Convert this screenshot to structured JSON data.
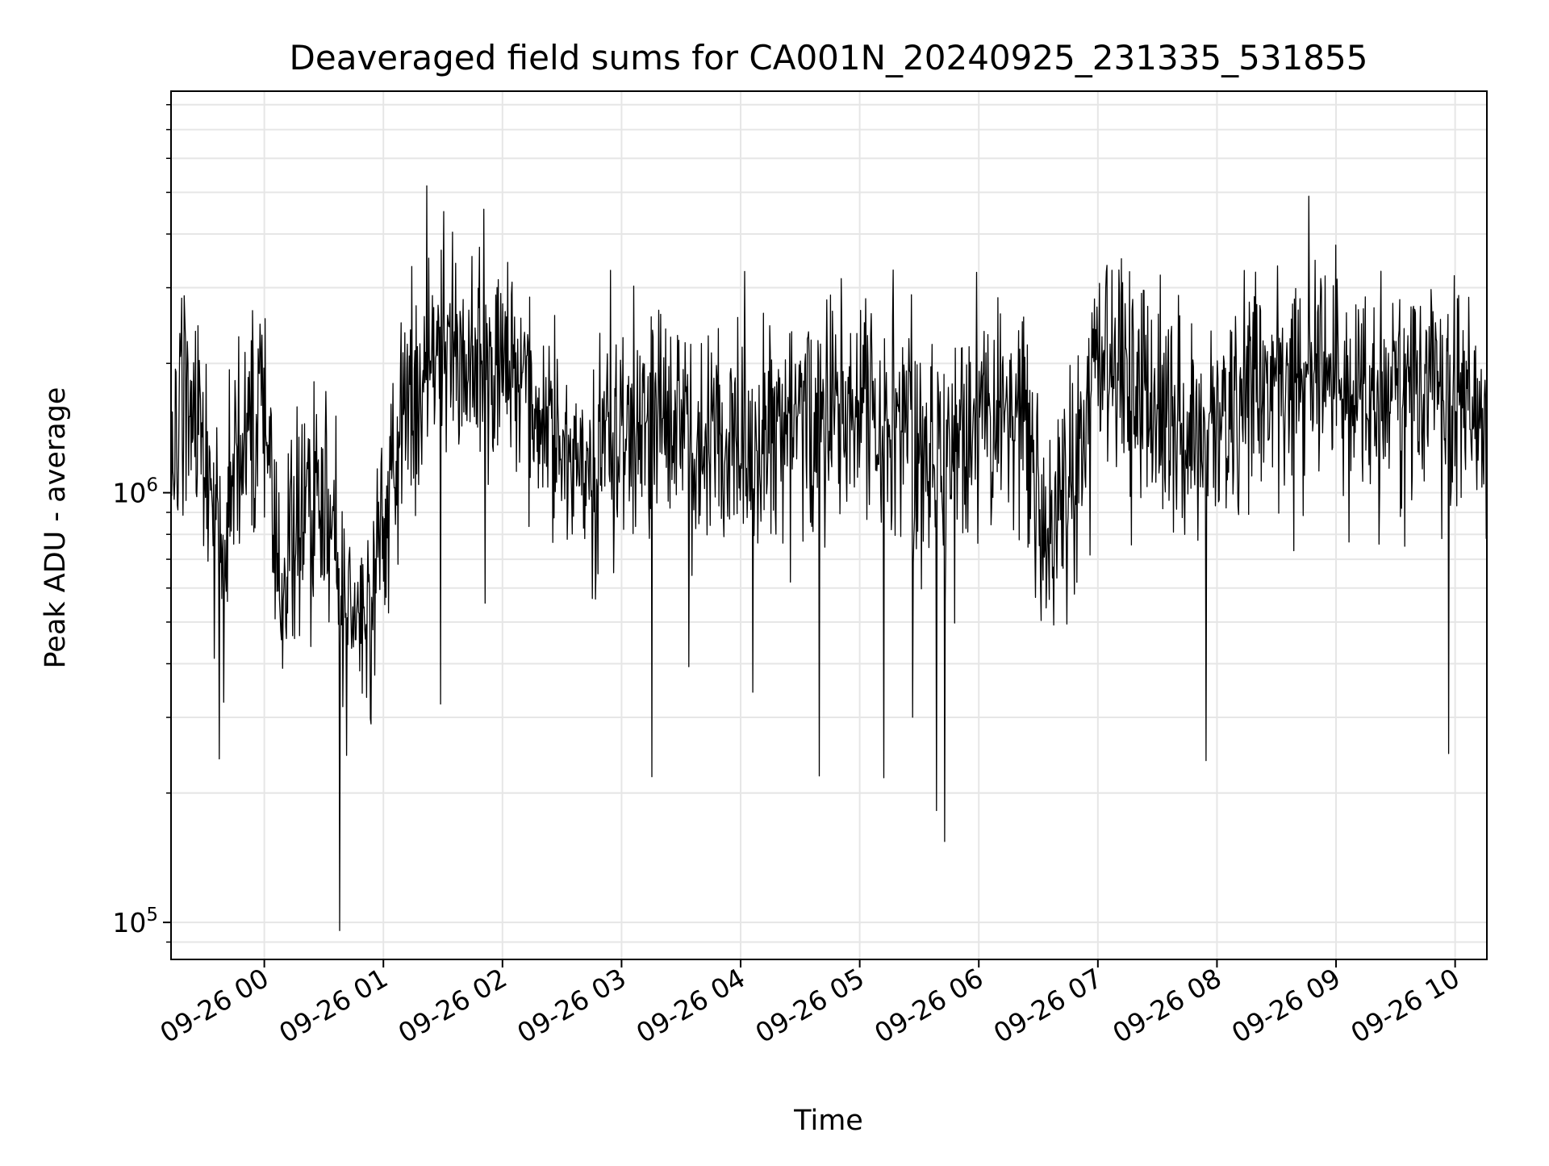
{
  "chart_data": {
    "type": "line",
    "title": "Deaveraged field sums for CA001N_20240925_231335_531855",
    "xlabel": "Time",
    "ylabel": "Peak ADU - average",
    "yscale": "log",
    "ylim": [
      82000,
      8600000
    ],
    "xlim": [
      "2024-09-25 23:13",
      "2024-09-26 10:16"
    ],
    "grid": true,
    "legend": "none",
    "colors": {
      "line": "#000000",
      "grid": "#e6e6e6",
      "axes": "#000000"
    },
    "x_ticks": [
      "09-26 00",
      "09-26 01",
      "09-26 02",
      "09-26 03",
      "09-26 04",
      "09-26 05",
      "09-26 06",
      "09-26 07",
      "09-26 08",
      "09-26 09",
      "09-26 10"
    ],
    "x_tick_values": [
      "2024-09-26 00:00",
      "2024-09-26 01:00",
      "2024-09-26 02:00",
      "2024-09-26 03:00",
      "2024-09-26 04:00",
      "2024-09-26 05:00",
      "2024-09-26 06:00",
      "2024-09-26 07:00",
      "2024-09-26 08:00",
      "2024-09-26 09:00",
      "2024-09-26 10:00"
    ],
    "y_ticks": [
      {
        "value": 100000,
        "base": "10",
        "exp": "5"
      },
      {
        "value": 1000000,
        "base": "10",
        "exp": "6"
      }
    ],
    "series": [
      {
        "color": "#000000",
        "points": [
          [
            "2024-09-25 23:13",
            1250000
          ],
          [
            "2024-09-25 23:20",
            1900000
          ],
          [
            "2024-09-25 23:30",
            1100000
          ],
          [
            "2024-09-25 23:40",
            760000
          ],
          [
            "2024-09-25 23:50",
            1300000
          ],
          [
            "2024-09-26 00:00",
            1500000
          ],
          [
            "2024-09-26 00:10",
            600000
          ],
          [
            "2024-09-26 00:20",
            900000
          ],
          [
            "2024-09-26 00:30",
            1000000
          ],
          [
            "2024-09-26 00:40",
            550000
          ],
          [
            "2024-09-26 00:50",
            480000
          ],
          [
            "2024-09-26 01:00",
            900000
          ],
          [
            "2024-09-26 01:10",
            1400000
          ],
          [
            "2024-09-26 01:20",
            1800000
          ],
          [
            "2024-09-26 01:30",
            2200000
          ],
          [
            "2024-09-26 01:40",
            1900000
          ],
          [
            "2024-09-26 02:00",
            2000000
          ],
          [
            "2024-09-26 02:20",
            1700000
          ],
          [
            "2024-09-26 02:40",
            1100000
          ],
          [
            "2024-09-26 03:00",
            1300000
          ],
          [
            "2024-09-26 03:20",
            1500000
          ],
          [
            "2024-09-26 03:40",
            1400000
          ],
          [
            "2024-09-26 04:00",
            1200000
          ],
          [
            "2024-09-26 04:20",
            1350000
          ],
          [
            "2024-09-26 04:40",
            1450000
          ],
          [
            "2024-09-26 05:00",
            1600000
          ],
          [
            "2024-09-26 05:20",
            1500000
          ],
          [
            "2024-09-26 05:40",
            1200000
          ],
          [
            "2024-09-26 06:00",
            1500000
          ],
          [
            "2024-09-26 06:20",
            1550000
          ],
          [
            "2024-09-26 06:35",
            800000
          ],
          [
            "2024-09-26 06:50",
            1200000
          ],
          [
            "2024-09-26 07:00",
            1900000
          ],
          [
            "2024-09-26 07:20",
            1600000
          ],
          [
            "2024-09-26 07:40",
            1400000
          ],
          [
            "2024-09-26 08:00",
            1500000
          ],
          [
            "2024-09-26 08:20",
            1700000
          ],
          [
            "2024-09-26 08:40",
            1900000
          ],
          [
            "2024-09-26 09:00",
            1700000
          ],
          [
            "2024-09-26 09:20",
            1600000
          ],
          [
            "2024-09-26 09:40",
            1800000
          ],
          [
            "2024-09-26 10:00",
            1600000
          ],
          [
            "2024-09-26 10:16",
            1300000
          ]
        ],
        "noise_sigma_dex": 0.19
      }
    ]
  }
}
